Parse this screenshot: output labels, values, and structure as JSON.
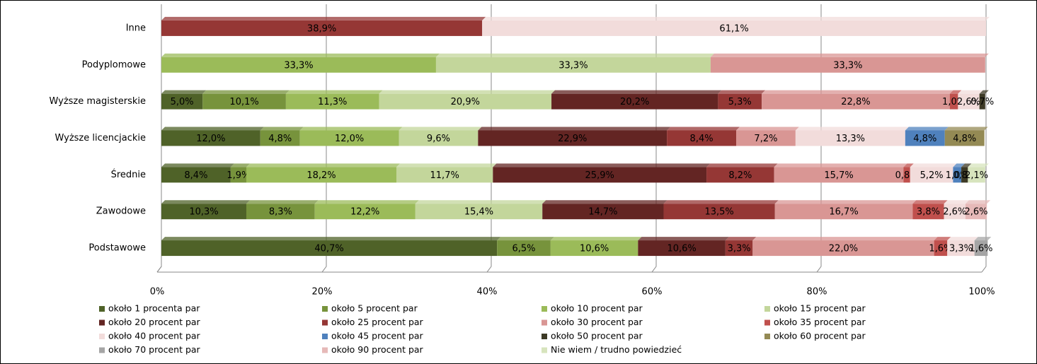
{
  "chart_data": {
    "type": "stacked-bar-horizontal",
    "categories": [
      "Inne",
      "Podyplomowe",
      "Wyższe magisterskie",
      "Wyższe licencjackie",
      "Średnie",
      "Zawodowe",
      "Podstawowe"
    ],
    "xlim": [
      0,
      100
    ],
    "xticks": [
      {
        "value": 0,
        "label": "0%"
      },
      {
        "value": 20,
        "label": "20%"
      },
      {
        "value": 40,
        "label": "40%"
      },
      {
        "value": 60,
        "label": "60%"
      },
      {
        "value": 80,
        "label": "80%"
      },
      {
        "value": 100,
        "label": "100%"
      }
    ],
    "grid": true,
    "legend": "bottom",
    "series": [
      {
        "name": "około 1 procenta par",
        "color": "#4f6228",
        "values": [
          null,
          null,
          5.0,
          12.0,
          8.4,
          10.3,
          40.7
        ],
        "value_labels": [
          null,
          null,
          "5,0%",
          "12,0%",
          "8,4%",
          "10,3%",
          "40,7%"
        ]
      },
      {
        "name": "około 5 procent par",
        "color": "#77933c",
        "values": [
          null,
          null,
          10.1,
          4.8,
          1.9,
          8.3,
          6.5
        ],
        "value_labels": [
          null,
          null,
          "10,1%",
          "4,8%",
          "1,9%",
          "8,3%",
          "6,5%"
        ]
      },
      {
        "name": "około 10 procent par",
        "color": "#9bbb59",
        "values": [
          null,
          33.3,
          11.3,
          12.0,
          18.2,
          12.2,
          10.6
        ],
        "value_labels": [
          null,
          "33,3%",
          "11,3%",
          "12,0%",
          "18,2%",
          "12,2%",
          "10,6%"
        ]
      },
      {
        "name": "około 15 procent par",
        "color": "#c3d69b",
        "values": [
          null,
          33.3,
          20.9,
          9.6,
          11.7,
          15.4,
          null
        ],
        "value_labels": [
          null,
          "33,3%",
          "20,9%",
          "9,6%",
          "11,7%",
          "15,4%",
          null
        ]
      },
      {
        "name": "około 20 procent par",
        "color": "#632523",
        "values": [
          null,
          null,
          20.2,
          22.9,
          25.9,
          14.7,
          10.6
        ],
        "value_labels": [
          null,
          null,
          "20,2%",
          "22,9%",
          "25,9%",
          "14,7%",
          "10,6%"
        ]
      },
      {
        "name": "około 25 procent par",
        "color": "#953735",
        "values": [
          38.9,
          null,
          5.3,
          8.4,
          8.2,
          13.5,
          3.3
        ],
        "value_labels": [
          "38,9%",
          null,
          "5,3%",
          "8,4%",
          "8,2%",
          "13,5%",
          "3,3%"
        ]
      },
      {
        "name": "około 30 procent par",
        "color": "#d99694",
        "values": [
          null,
          33.3,
          22.8,
          7.2,
          15.7,
          16.7,
          22.0
        ],
        "value_labels": [
          null,
          "33,3%",
          "22,8%",
          "7,2%",
          "15,7%",
          "16,7%",
          "22,0%"
        ]
      },
      {
        "name": "około 35 procent par",
        "color": "#c0504d",
        "values": [
          null,
          null,
          1.0,
          null,
          0.8,
          3.8,
          1.6
        ],
        "value_labels": [
          null,
          null,
          "1,0%",
          null,
          "0,8%",
          "3,8%",
          "1,6%"
        ]
      },
      {
        "name": "około 40 procent par",
        "color": "#f2dcdb",
        "values": [
          61.1,
          null,
          2.6,
          13.3,
          5.2,
          2.6,
          3.3
        ],
        "value_labels": [
          "61,1%",
          null,
          "2,6%",
          "13,3%",
          "5,2%",
          "2,6%",
          "3,3%"
        ]
      },
      {
        "name": "około 45 procent par",
        "color": "#4f81bd",
        "values": [
          null,
          null,
          null,
          4.8,
          1.0,
          null,
          null
        ],
        "value_labels": [
          null,
          null,
          null,
          "4,8%",
          "1,0%",
          null,
          null
        ]
      },
      {
        "name": "około 50 procent par",
        "color": "#3d3a26",
        "values": [
          null,
          null,
          0.7,
          null,
          0.8,
          null,
          null
        ],
        "value_labels": [
          null,
          null,
          "0,7%",
          null,
          "0,8%",
          null,
          null
        ]
      },
      {
        "name": "około 60 procent par",
        "color": "#948a54",
        "values": [
          null,
          null,
          null,
          4.8,
          null,
          null,
          null
        ],
        "value_labels": [
          null,
          null,
          null,
          "4,8%",
          null,
          null,
          null
        ]
      },
      {
        "name": "około 70 procent par",
        "color": "#a5a5a5",
        "values": [
          null,
          null,
          null,
          null,
          null,
          null,
          1.6
        ],
        "value_labels": [
          null,
          null,
          null,
          null,
          null,
          null,
          "1,6%"
        ]
      },
      {
        "name": "około 90 procent par",
        "color": "#e6b9b8",
        "values": [
          null,
          null,
          null,
          null,
          null,
          2.6,
          null
        ],
        "value_labels": [
          null,
          null,
          null,
          null,
          null,
          "2,6%",
          null
        ]
      },
      {
        "name": "Nie wiem / trudno powiedzieć",
        "color": "#d7e4bd",
        "values": [
          null,
          null,
          null,
          null,
          2.1,
          null,
          null
        ],
        "value_labels": [
          null,
          null,
          null,
          null,
          "2,1%",
          null,
          null
        ]
      }
    ]
  }
}
